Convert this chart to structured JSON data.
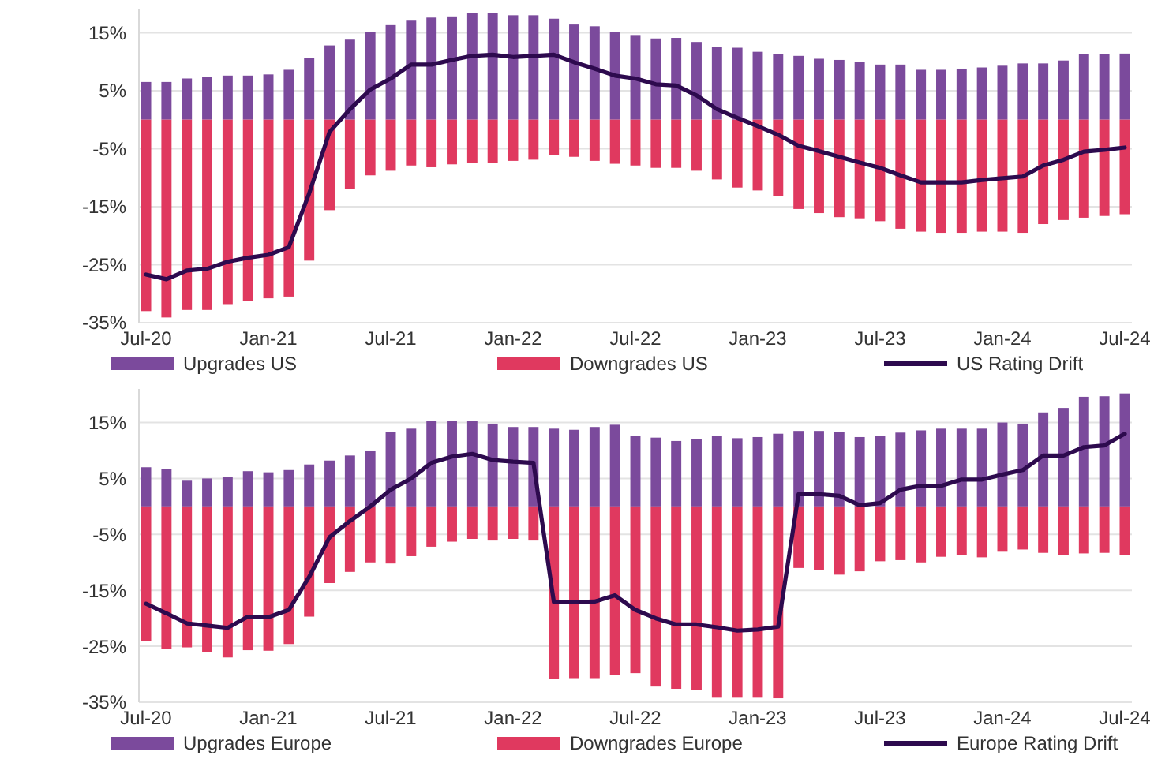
{
  "chart_data": [
    {
      "type": "bar",
      "stacked": true,
      "grid": "y",
      "legend": "bottom",
      "categories": [
        "Jul-20",
        null,
        null,
        null,
        null,
        null,
        "Jan-21",
        null,
        null,
        null,
        null,
        null,
        "Jul-21",
        null,
        null,
        null,
        null,
        null,
        "Jan-22",
        null,
        null,
        null,
        null,
        null,
        "Jul-22",
        null,
        null,
        null,
        null,
        null,
        "Jan-23",
        null,
        null,
        null,
        null,
        null,
        "Jul-23",
        null,
        null,
        null,
        null,
        null,
        "Jan-24",
        null,
        null,
        null,
        null,
        null,
        "Jul-24"
      ],
      "ylim": [
        -35,
        19
      ],
      "yticks": [
        {
          "value": 15,
          "label": "15%"
        },
        {
          "value": 5,
          "label": "5%"
        },
        {
          "value": -5,
          "label": "-5%"
        },
        {
          "value": -15,
          "label": "-15%"
        },
        {
          "value": -25,
          "label": "-25%"
        },
        {
          "value": -35,
          "label": "-35%"
        }
      ],
      "series": [
        {
          "name": "Upgrades US",
          "color": "#7b4a9c",
          "values": [
            6.5,
            6.5,
            7.1,
            7.4,
            7.6,
            7.6,
            7.8,
            8.6,
            10.6,
            12.8,
            13.8,
            15.1,
            16.3,
            17.2,
            17.6,
            17.8,
            18.4,
            18.4,
            18,
            18,
            17.4,
            16.4,
            16.1,
            15.1,
            14.6,
            14.0,
            14.1,
            13.4,
            12.6,
            12.4,
            11.7,
            11.3,
            11.0,
            10.5,
            10.3,
            10.0,
            9.5,
            9.5,
            8.6,
            8.6,
            8.8,
            9.0,
            9.3,
            9.7,
            9.7,
            10.2,
            11.3,
            11.3,
            11.4
          ]
        },
        {
          "name": "Downgrades US",
          "color": "#e0395f",
          "values": [
            -33,
            -34.1,
            -32.8,
            -32.8,
            -31.8,
            -31.2,
            -30.8,
            -30.5,
            -24.3,
            -15.6,
            -11.9,
            -9.6,
            -8.8,
            -7.9,
            -8.2,
            -7.7,
            -7.4,
            -7.4,
            -7.1,
            -6.9,
            -6.1,
            -6.4,
            -7.1,
            -7.6,
            -7.9,
            -8.3,
            -8.3,
            -8.8,
            -10.3,
            -11.7,
            -12.2,
            -13.2,
            -15.4,
            -16.1,
            -16.8,
            -17.0,
            -17.5,
            -18.8,
            -19.3,
            -19.5,
            -19.5,
            -19.3,
            -19.3,
            -19.5,
            -18.0,
            -17.3,
            -16.9,
            -16.6,
            -16.3
          ]
        },
        {
          "name": "US Rating Drift",
          "type": "line",
          "color": "#2d0a4e",
          "values": [
            -26.7,
            -27.5,
            -26,
            -25.7,
            -24.5,
            -23.8,
            -23.3,
            -22,
            -12.7,
            -2.1,
            1.8,
            5.2,
            7.1,
            9.5,
            9.5,
            10.3,
            11,
            11.2,
            10.8,
            11,
            11.2,
            9.9,
            8.8,
            7.6,
            7.1,
            6.1,
            5.9,
            4.2,
            1.8,
            0.3,
            -1.1,
            -2.6,
            -4.5,
            -5.4,
            -6.4,
            -7.4,
            -8.3,
            -9.6,
            -10.8,
            -10.8,
            -10.8,
            -10.4,
            -10.1,
            -9.8,
            -7.9,
            -6.9,
            -5.5,
            -5.2,
            -4.8
          ]
        }
      ]
    },
    {
      "type": "bar",
      "stacked": true,
      "grid": "y",
      "legend": "bottom",
      "categories": [
        "Jul-20",
        null,
        null,
        null,
        null,
        null,
        "Jan-21",
        null,
        null,
        null,
        null,
        null,
        "Jul-21",
        null,
        null,
        null,
        null,
        null,
        "Jan-22",
        null,
        null,
        null,
        null,
        null,
        "Jul-22",
        null,
        null,
        null,
        null,
        null,
        "Jan-23",
        null,
        null,
        null,
        null,
        null,
        "Jul-23",
        null,
        null,
        null,
        null,
        null,
        "Jan-24",
        null,
        null,
        null,
        null,
        null,
        "Jul-24"
      ],
      "ylim": [
        -35,
        21
      ],
      "yticks": [
        {
          "value": 15,
          "label": "15%"
        },
        {
          "value": 5,
          "label": "5%"
        },
        {
          "value": -5,
          "label": "-5%"
        },
        {
          "value": -15,
          "label": "-15%"
        },
        {
          "value": -25,
          "label": "-25%"
        },
        {
          "value": -35,
          "label": "-35%"
        }
      ],
      "series": [
        {
          "name": "Upgrades Europe",
          "color": "#7b4a9c",
          "values": [
            7.0,
            6.7,
            4.6,
            5.0,
            5.2,
            6.3,
            6.1,
            6.5,
            7.5,
            8.2,
            9.1,
            10.0,
            13.3,
            13.9,
            15.3,
            15.3,
            15.3,
            14.8,
            14.2,
            14.2,
            13.9,
            13.7,
            14.2,
            14.6,
            12.6,
            12.3,
            11.7,
            12.0,
            12.6,
            12.2,
            12.4,
            13.0,
            13.5,
            13.5,
            13.3,
            12.4,
            12.6,
            13.2,
            13.6,
            13.9,
            13.9,
            13.9,
            15.0,
            14.8,
            16.8,
            17.6,
            19.6,
            19.7,
            20.2
          ]
        },
        {
          "name": "Downgrades Europe",
          "color": "#e0395f",
          "values": [
            -24.1,
            -25.5,
            -25.2,
            -26.1,
            -27.0,
            -25.7,
            -25.8,
            -24.6,
            -19.7,
            -13.7,
            -11.7,
            -10.0,
            -10.2,
            -8.9,
            -7.2,
            -6.3,
            -5.8,
            -6.1,
            -5.8,
            -6.1,
            -30.9,
            -30.7,
            -30.7,
            -30.2,
            -29.8,
            -32.2,
            -32.6,
            -32.8,
            -34.2,
            -34.2,
            -34.2,
            -34.3,
            -11.0,
            -11.3,
            -12.2,
            -11.6,
            -9.8,
            -9.6,
            -10.0,
            -9.0,
            -8.7,
            -9.1,
            -8.1,
            -7.7,
            -8.3,
            -8.7,
            -8.4,
            -8.3,
            -8.7
          ]
        },
        {
          "name": "Europe Rating Drift",
          "type": "line",
          "color": "#2d0a4e",
          "values": [
            -17.4,
            -19.1,
            -20.9,
            -21.3,
            -21.7,
            -19.7,
            -19.8,
            -18.5,
            -12.6,
            -5.5,
            -2.6,
            0,
            3.0,
            5.0,
            7.8,
            8.9,
            9.4,
            8.3,
            8.0,
            7.8,
            -17.1,
            -17.1,
            -17.0,
            -15.9,
            -18.5,
            -20.0,
            -21.1,
            -21.1,
            -21.6,
            -22.2,
            -22.0,
            -21.5,
            2.2,
            2.2,
            1.9,
            0.2,
            0.6,
            3.0,
            3.7,
            3.7,
            4.8,
            4.8,
            5.7,
            6.5,
            9.1,
            9.1,
            10.6,
            10.9,
            13.0
          ]
        }
      ]
    }
  ]
}
